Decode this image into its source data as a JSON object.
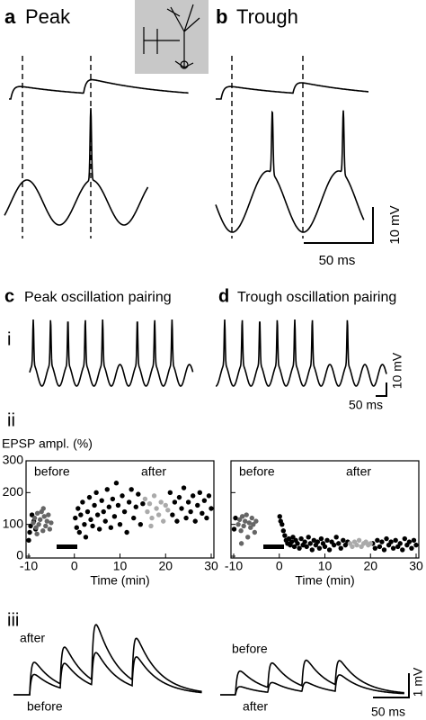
{
  "panels": {
    "a": {
      "letter": "a",
      "title": "Peak"
    },
    "b": {
      "letter": "b",
      "title": "Trough"
    },
    "c": {
      "letter": "c",
      "title": "Peak oscillation pairing"
    },
    "d": {
      "letter": "d",
      "title": "Trough oscillation pairing"
    },
    "rows": [
      "i",
      "ii",
      "iii"
    ]
  },
  "scale_bars": {
    "ab": {
      "y": "10 mV",
      "x": "50 ms"
    },
    "ci": {
      "y": "10 mV",
      "x": "50 ms"
    },
    "ciii": {
      "y": "1 mV",
      "x": "50 ms"
    }
  },
  "trace_labels": {
    "c_after": "after",
    "c_before": "before",
    "d_before": "before",
    "d_after": "after"
  },
  "chart_data": [
    {
      "type": "scatter",
      "ylabel": "EPSP ampl. (%)",
      "xlabel": "Time (min)",
      "annotations": [
        "before",
        "after"
      ],
      "xlim": [
        -10,
        30
      ],
      "ylim": [
        0,
        300
      ],
      "xticks": [
        -10,
        0,
        10,
        20,
        30
      ],
      "yticks": [
        0,
        100,
        200,
        300
      ],
      "ytick_labels": true,
      "series": [
        {
          "color": "#000000",
          "x": [
            -10,
            -9.8,
            -9.6,
            -9.3,
            -8.9,
            -8.5,
            0.2,
            0.5,
            0.8,
            1.1,
            1.4,
            1.8,
            2.2,
            2.5,
            2.9,
            3.3,
            3.6,
            4,
            4.4,
            4.8,
            5.1,
            5.5,
            6,
            6.4,
            6.8,
            7.2,
            7.6,
            8,
            8.4,
            8.8,
            9.2,
            9.6,
            10,
            10.5,
            11,
            11.5,
            12,
            12.5,
            13,
            13.5,
            14,
            14.5,
            15,
            21,
            21.5,
            22,
            22.5,
            23,
            23.5,
            24,
            24.5,
            25,
            25.5,
            26,
            26.5,
            27,
            27.5,
            28,
            28.5,
            29,
            29.5,
            30
          ],
          "values": [
            50,
            75,
            95,
            130,
            110,
            85,
            120,
            90,
            150,
            75,
            130,
            170,
            100,
            60,
            140,
            185,
            115,
            95,
            160,
            200,
            130,
            85,
            175,
            140,
            110,
            210,
            155,
            90,
            180,
            125,
            230,
            160,
            100,
            190,
            140,
            75,
            170,
            210,
            120,
            155,
            195,
            100,
            165,
            200,
            130,
            170,
            110,
            185,
            150,
            215,
            120,
            170,
            140,
            190,
            110,
            160,
            200,
            135,
            175,
            120,
            190,
            150
          ]
        },
        {
          "color": "#666666",
          "x": [
            -9,
            -8.7,
            -8.4,
            -8.1,
            -7.8,
            -7.5,
            -7.2,
            -6.9,
            -6.6,
            -6.3,
            -6,
            -5.7,
            -5.4,
            -5.1,
            -8.2,
            -6.8
          ],
          "values": [
            105,
            120,
            90,
            135,
            100,
            115,
            140,
            80,
            125,
            95,
            110,
            130,
            85,
            105,
            70,
            150
          ]
        },
        {
          "color": "#aaaaaa",
          "x": [
            15.5,
            16,
            16.5,
            17,
            17.5,
            18,
            18.5,
            19,
            19.5,
            20,
            20.5,
            16.8
          ],
          "values": [
            180,
            140,
            165,
            120,
            190,
            150,
            130,
            170,
            110,
            160,
            145,
            95
          ]
        }
      ]
    },
    {
      "type": "scatter",
      "xlabel": "Time (min)",
      "annotations": [
        "before",
        "after"
      ],
      "xlim": [
        -10,
        30
      ],
      "ylim": [
        0,
        300
      ],
      "xticks": [
        -10,
        0,
        10,
        20,
        30
      ],
      "yticks": [
        0,
        100,
        200,
        300
      ],
      "ytick_labels": false,
      "series": [
        {
          "color": "#000000",
          "x": [
            -9.9,
            -9.6,
            0.1,
            0.3,
            0.6,
            0.9,
            1.2,
            1.5,
            1.8,
            2.1,
            2.4,
            2.7,
            3,
            3.3,
            3.6,
            4,
            4.4,
            4.8,
            5.2,
            5.6,
            6,
            6.4,
            6.8,
            7.2,
            7.6,
            8,
            8.4,
            8.8,
            9.2,
            9.6,
            10,
            10.5,
            11,
            11.5,
            12,
            12.5,
            13,
            13.5,
            14,
            14.5,
            15,
            20.5,
            21,
            21.5,
            22,
            22.5,
            23,
            23.5,
            24,
            24.5,
            25,
            25.5,
            26,
            26.5,
            27,
            27.5,
            28,
            28.5,
            29,
            29.5,
            30
          ],
          "values": [
            85,
            120,
            125,
            110,
            100,
            80,
            65,
            50,
            40,
            55,
            35,
            45,
            60,
            30,
            50,
            40,
            25,
            55,
            35,
            45,
            30,
            60,
            40,
            20,
            50,
            35,
            45,
            25,
            55,
            40,
            30,
            50,
            20,
            45,
            35,
            60,
            40,
            25,
            50,
            35,
            45,
            40,
            25,
            50,
            30,
            45,
            20,
            55,
            35,
            45,
            25,
            50,
            30,
            40,
            20,
            55,
            35,
            45,
            25,
            50,
            35
          ]
        },
        {
          "color": "#666666",
          "x": [
            -9,
            -8.7,
            -8.4,
            -8.1,
            -7.8,
            -7.5,
            -7.2,
            -6.9,
            -6.6,
            -6.3,
            -6,
            -5.7,
            -5.4,
            -5.1,
            -8.3
          ],
          "values": [
            100,
            115,
            80,
            125,
            95,
            110,
            130,
            60,
            105,
            90,
            120,
            100,
            75,
            110,
            40
          ]
        },
        {
          "color": "#aaaaaa",
          "x": [
            15.5,
            16,
            16.5,
            17,
            17.5,
            18,
            18.5,
            19,
            19.5,
            20
          ],
          "values": [
            40,
            30,
            45,
            35,
            50,
            30,
            40,
            45,
            35,
            40
          ]
        }
      ]
    }
  ]
}
